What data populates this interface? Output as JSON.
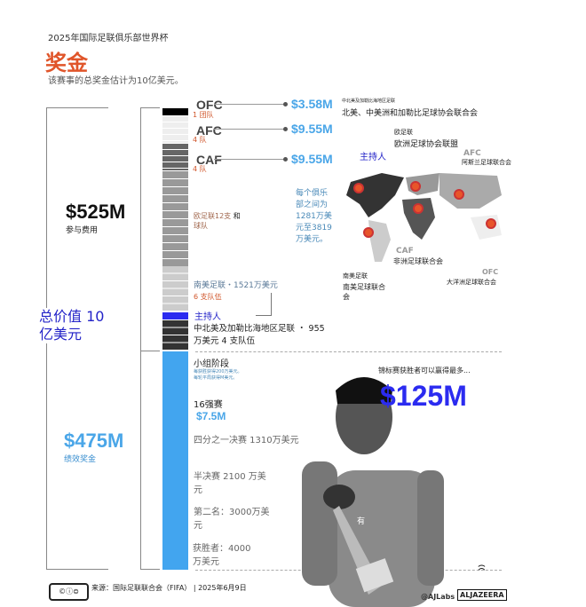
{
  "header": {
    "supertitle": "2025年国际足联俱乐部世界杯",
    "title": "奖金",
    "subtitle": "该赛事的总奖金估计为10亿美元。"
  },
  "total": {
    "label": "总价值 10 亿美元"
  },
  "participation": {
    "amount": "$525M",
    "label": "参与费用"
  },
  "performance": {
    "amount": "$475M",
    "label": "绩效奖金"
  },
  "confederations": [
    {
      "code": "OFC",
      "teams": "1 团队",
      "amount": "$3.58M"
    },
    {
      "code": "AFC",
      "teams": "4 队",
      "amount": "$9.55M"
    },
    {
      "code": "CAF",
      "teams": "4 队",
      "amount": "$9.55M"
    }
  ],
  "uefa": {
    "text": "欧足联12支",
    "text2": "球队",
    "and": "和"
  },
  "uefa_range": "每个俱乐部之间为1281万美元至3819万美元。",
  "conmebol": {
    "text": "南美足联・1521万美元",
    "teams": "6 支队伍"
  },
  "host": "主持人",
  "concacaf": "中北美及加勒比海地区足联 ・ 955 万美元 4 支队伍",
  "map": {
    "concacaf_small": "中北美及加勒比海地区足联",
    "concacaf": "北美、中美洲和加勒比足球协会联合会",
    "uefa_short": "欧足联",
    "uefa": "欧洲足球协会联盟",
    "host": "主持人",
    "afc": "AFC",
    "afc_name": "阿斯兰足球联合会",
    "caf": "CAF",
    "caf_name": "非洲足球联合会",
    "conmebol_short": "南美足联",
    "conmebol_name": "南美足球联合会",
    "ofc": "OFC",
    "ofc_name": "大洋洲足球联合会"
  },
  "stages": {
    "group": "小组阶段",
    "group_note1": "每获胜获得200万美元。",
    "group_note2": "每轮平局获得M美元。",
    "r16": "16强赛",
    "r16_amount": "$7.5M",
    "qf": "四分之一决赛 1310万美元",
    "sf": "半决赛 2100 万美元",
    "runner_up": "第二名：3000万美元",
    "winner": "获胜者：4000万美元"
  },
  "winner_callout": {
    "text": "锦标赛获胜者可以赢得最多...",
    "amount": "$125M",
    "photo_text": "有"
  },
  "footer": {
    "source": "来源：国际足联联合会（FIFA） | 2025年6月9日",
    "handle": "@AJLabs",
    "brand": "ALJAZEERA"
  },
  "colors": {
    "accent": "#e0552a",
    "blue": "#4aa6e8",
    "host": "#2b2bf0"
  }
}
